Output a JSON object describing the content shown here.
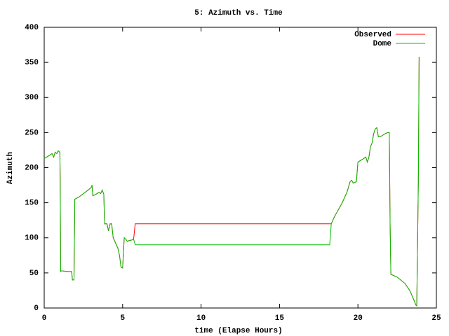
{
  "chart_data": {
    "type": "line",
    "title": "5: Azimuth vs. Time",
    "x_label": "time (Elapse Hours)",
    "y_label": "Azimuth",
    "x": [
      0,
      0.3,
      0.5,
      0.6,
      0.7,
      0.8,
      0.9,
      1.0,
      1.02,
      1.05,
      1.1,
      1.5,
      1.75,
      1.8,
      1.9,
      1.95,
      2.2,
      2.5,
      2.8,
      3.0,
      3.05,
      3.1,
      3.3,
      3.5,
      3.6,
      3.7,
      3.8,
      3.85,
      4.0,
      4.1,
      4.2,
      4.3,
      4.4,
      4.5,
      4.6,
      4.7,
      4.8,
      4.9,
      5.0,
      5.1,
      5.2,
      5.3,
      5.4,
      5.6,
      5.7,
      5.8,
      18.2,
      18.3,
      18.5,
      19.0,
      19.3,
      19.5,
      19.6,
      19.7,
      19.9,
      20.0,
      20.3,
      20.5,
      20.6,
      20.7,
      20.8,
      20.9,
      21.0,
      21.1,
      21.2,
      21.3,
      21.5,
      21.7,
      21.9,
      22.0,
      22.05,
      22.1,
      22.5,
      23.0,
      23.3,
      23.5,
      23.7,
      23.75,
      23.8,
      23.85,
      23.9
    ],
    "series": [
      {
        "name": "Observed",
        "color": "#ff0000",
        "values": [
          213,
          217,
          220,
          215,
          222,
          220,
          224,
          222,
          180,
          52,
          53,
          52,
          52,
          40,
          40,
          155,
          158,
          163,
          168,
          172,
          175,
          160,
          162,
          165,
          163,
          168,
          162,
          120,
          120,
          110,
          120,
          120,
          100,
          95,
          90,
          85,
          75,
          58,
          57,
          100,
          98,
          95,
          96,
          97,
          98,
          120,
          120,
          120,
          130,
          150,
          165,
          180,
          182,
          178,
          180,
          208,
          212,
          215,
          208,
          215,
          230,
          235,
          248,
          255,
          257,
          244,
          245,
          248,
          250,
          250,
          120,
          48,
          44,
          35,
          25,
          15,
          4,
          3,
          90,
          180,
          358
        ]
      },
      {
        "name": "Dome",
        "color": "#00c000",
        "values": [
          213,
          217,
          220,
          215,
          222,
          220,
          224,
          222,
          180,
          52,
          53,
          52,
          52,
          40,
          40,
          155,
          158,
          163,
          168,
          172,
          175,
          160,
          162,
          165,
          163,
          168,
          162,
          120,
          120,
          110,
          120,
          120,
          100,
          95,
          90,
          85,
          75,
          58,
          57,
          100,
          98,
          95,
          96,
          97,
          98,
          90,
          90,
          120,
          130,
          150,
          165,
          180,
          182,
          178,
          180,
          208,
          212,
          215,
          208,
          215,
          230,
          235,
          248,
          255,
          257,
          244,
          245,
          248,
          250,
          250,
          120,
          48,
          44,
          35,
          25,
          15,
          4,
          3,
          90,
          180,
          358
        ]
      }
    ],
    "xlim": [
      0,
      25
    ],
    "xticks": [
      0,
      5,
      10,
      15,
      20,
      25
    ],
    "ylim": [
      0,
      400
    ],
    "yticks": [
      0,
      50,
      100,
      150,
      200,
      250,
      300,
      350,
      400
    ],
    "legend": "top right"
  }
}
